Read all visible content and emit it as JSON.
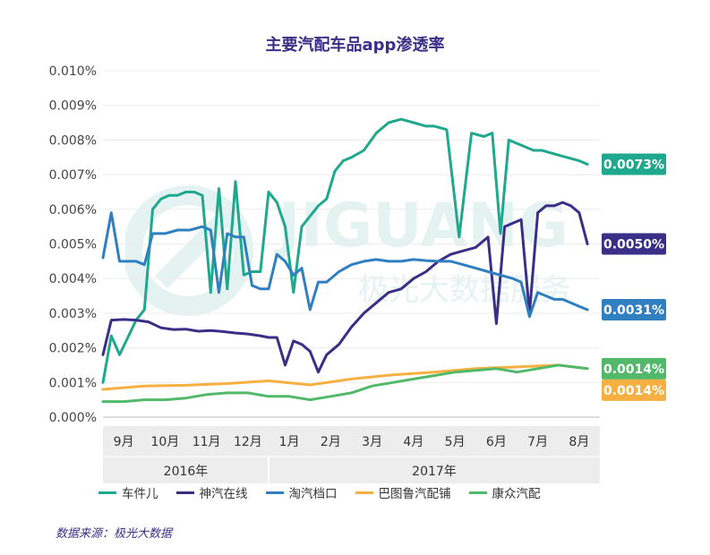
{
  "title": "主要汽配车品app渗透率",
  "source": "数据来源：极光大数据",
  "watermark": {
    "main": "JIGUANG",
    "sub": "极光大数据服务"
  },
  "chart_data": {
    "type": "line",
    "ylim": [
      0,
      0.01
    ],
    "yticks": [
      0,
      0.001,
      0.002,
      0.003,
      0.004,
      0.005,
      0.006,
      0.007,
      0.008,
      0.009,
      0.01
    ],
    "ytick_labels": [
      "0.000%",
      "0.001%",
      "0.002%",
      "0.003%",
      "0.004%",
      "0.005%",
      "0.006%",
      "0.007%",
      "0.008%",
      "0.009%",
      "0.010%"
    ],
    "months": [
      "9月",
      "10月",
      "11月",
      "12月",
      "1月",
      "2月",
      "3月",
      "4月",
      "5月",
      "6月",
      "7月",
      "8月"
    ],
    "years": [
      {
        "label": "2016年",
        "months": 4
      },
      {
        "label": "2017年",
        "months": 8
      }
    ],
    "x_range": [
      0,
      12
    ],
    "series": [
      {
        "name": "车件儿",
        "color": "#1fa88d",
        "end_label": "0.0073%",
        "x": [
          0,
          0.2,
          0.4,
          0.6,
          0.8,
          1,
          1.2,
          1.4,
          1.6,
          1.8,
          2,
          2.2,
          2.4,
          2.6,
          2.8,
          3,
          3.2,
          3.4,
          3.6,
          3.8,
          4,
          4.2,
          4.4,
          4.6,
          4.8,
          5,
          5.2,
          5.4,
          5.6,
          5.8,
          6,
          6.3,
          6.6,
          6.9,
          7.2,
          7.5,
          7.8,
          8,
          8.3,
          8.6,
          8.9,
          9.2,
          9.4,
          9.6,
          9.8,
          10,
          10.2,
          10.4,
          10.6,
          10.9,
          11.2,
          11.5,
          11.7
        ],
        "values": [
          0.001,
          0.00235,
          0.0018,
          0.0023,
          0.0028,
          0.0031,
          0.006,
          0.0063,
          0.0064,
          0.0064,
          0.0065,
          0.0065,
          0.0064,
          0.0036,
          0.0066,
          0.0037,
          0.0068,
          0.0041,
          0.0042,
          0.0042,
          0.0065,
          0.0062,
          0.0055,
          0.0036,
          0.0055,
          0.0058,
          0.0061,
          0.0063,
          0.0071,
          0.0074,
          0.0075,
          0.0077,
          0.0082,
          0.0085,
          0.0086,
          0.0085,
          0.0084,
          0.0084,
          0.0083,
          0.0052,
          0.0082,
          0.0081,
          0.0082,
          0.0053,
          0.008,
          0.0079,
          0.0078,
          0.0077,
          0.0077,
          0.0076,
          0.0075,
          0.0074,
          0.0073
        ]
      },
      {
        "name": "神汽在线",
        "color": "#3b2e86",
        "end_label": "0.0050%",
        "x": [
          0,
          0.2,
          0.5,
          0.8,
          1.1,
          1.4,
          1.7,
          2,
          2.3,
          2.6,
          2.9,
          3.2,
          3.5,
          3.8,
          4,
          4.2,
          4.4,
          4.6,
          4.8,
          5,
          5.2,
          5.4,
          5.7,
          6,
          6.3,
          6.6,
          6.9,
          7.2,
          7.5,
          7.8,
          8.1,
          8.4,
          8.7,
          9,
          9.3,
          9.5,
          9.7,
          9.9,
          10.1,
          10.3,
          10.5,
          10.7,
          10.9,
          11.1,
          11.3,
          11.5,
          11.7
        ],
        "values": [
          0.0018,
          0.0028,
          0.00282,
          0.0028,
          0.00275,
          0.00258,
          0.00253,
          0.00254,
          0.00248,
          0.0025,
          0.00247,
          0.00243,
          0.0024,
          0.00235,
          0.0023,
          0.0023,
          0.0015,
          0.0022,
          0.0021,
          0.0019,
          0.0013,
          0.0018,
          0.0021,
          0.0026,
          0.003,
          0.0033,
          0.0036,
          0.0037,
          0.004,
          0.0042,
          0.0045,
          0.0047,
          0.0048,
          0.0049,
          0.0052,
          0.0027,
          0.0055,
          0.0056,
          0.0057,
          0.003,
          0.0059,
          0.0061,
          0.0061,
          0.0062,
          0.0061,
          0.0059,
          0.005
        ]
      },
      {
        "name": "淘汽档口",
        "color": "#2f7fc1",
        "end_label": "0.0031%",
        "x": [
          0,
          0.2,
          0.4,
          0.6,
          0.8,
          1,
          1.2,
          1.5,
          1.8,
          2.1,
          2.4,
          2.6,
          2.8,
          3,
          3.2,
          3.4,
          3.6,
          3.8,
          4,
          4.2,
          4.4,
          4.6,
          4.8,
          5,
          5.2,
          5.4,
          5.7,
          6,
          6.3,
          6.6,
          6.9,
          7.2,
          7.5,
          7.8,
          8.1,
          8.4,
          8.7,
          9,
          9.3,
          9.6,
          9.9,
          10.1,
          10.3,
          10.5,
          10.7,
          10.9,
          11.1,
          11.3,
          11.5,
          11.7
        ],
        "values": [
          0.0046,
          0.0059,
          0.0045,
          0.0045,
          0.0045,
          0.0044,
          0.0053,
          0.0053,
          0.0054,
          0.0054,
          0.0055,
          0.0054,
          0.0036,
          0.0053,
          0.0052,
          0.0052,
          0.0038,
          0.0037,
          0.0037,
          0.0047,
          0.0045,
          0.0041,
          0.0043,
          0.0031,
          0.0039,
          0.0039,
          0.0042,
          0.0044,
          0.0045,
          0.00455,
          0.0045,
          0.0045,
          0.00455,
          0.00452,
          0.0045,
          0.0045,
          0.0044,
          0.0043,
          0.0042,
          0.0041,
          0.004,
          0.0039,
          0.0029,
          0.0036,
          0.0035,
          0.0034,
          0.0034,
          0.0033,
          0.0032,
          0.0031
        ]
      },
      {
        "name": "巴图鲁汽配铺",
        "color": "#f5b041",
        "end_label": "0.0014%",
        "x": [
          0,
          1,
          2,
          3,
          4,
          5,
          6,
          7,
          8,
          9,
          10,
          11,
          11.7
        ],
        "values": [
          0.0008,
          0.0009,
          0.00092,
          0.00097,
          0.00105,
          0.00093,
          0.0011,
          0.00122,
          0.0013,
          0.0014,
          0.00145,
          0.0015,
          0.0014
        ]
      },
      {
        "name": "康众汽配",
        "color": "#52b96a",
        "end_label": "0.0014%",
        "x": [
          0,
          0.5,
          1,
          1.5,
          2,
          2.5,
          3,
          3.5,
          4,
          4.5,
          5,
          5.5,
          6,
          6.5,
          7,
          7.5,
          8,
          8.5,
          9,
          9.5,
          10,
          10.5,
          11,
          11.7
        ],
        "values": [
          0.00045,
          0.00045,
          0.0005,
          0.0005,
          0.00055,
          0.00065,
          0.0007,
          0.0007,
          0.0006,
          0.0006,
          0.0005,
          0.0006,
          0.0007,
          0.0009,
          0.001,
          0.0011,
          0.0012,
          0.0013,
          0.00135,
          0.0014,
          0.0013,
          0.0014,
          0.0015,
          0.0014
        ]
      }
    ]
  }
}
